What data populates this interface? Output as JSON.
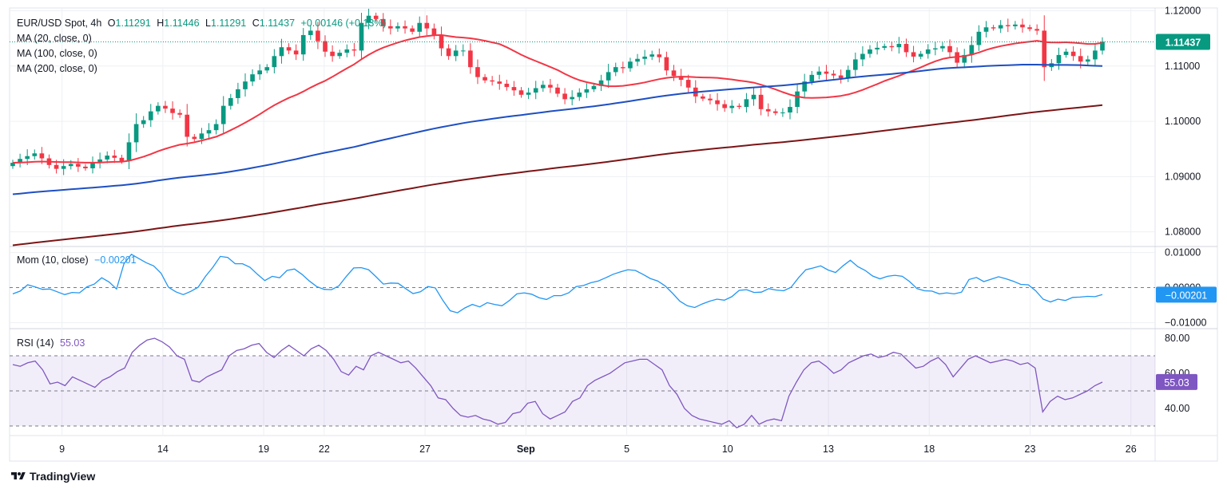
{
  "header": {
    "symbol": "EUR/USD Spot, 4h",
    "open_label": "O",
    "open": "1.11291",
    "high_label": "H",
    "high": "1.11446",
    "low_label": "L",
    "low": "1.11291",
    "close_label": "C",
    "close": "1.11437",
    "change": "+0.00146 (+0.13%)"
  },
  "ma_legend": [
    "MA (20, close, 0)",
    "MA (100, close, 0)",
    "MA (200, close, 0)"
  ],
  "mom_legend": {
    "label": "Mom (10, close)",
    "value": "−0.00201"
  },
  "rsi_legend": {
    "label": "RSI (14)",
    "value": "55.03"
  },
  "brand": "TradingView",
  "colors": {
    "up": "#089981",
    "down": "#f23645",
    "ma20": "#f23645",
    "ma100": "#1e4fc2",
    "ma200": "#7b1516",
    "mom": "#2196f3",
    "rsi": "#7e57c2",
    "grid": "#eef0f3"
  },
  "chart_data": [
    {
      "type": "candlestick",
      "title": "EUR/USD Spot, 4h",
      "ylim": [
        1.0775,
        1.1205
      ],
      "y_ticks": [
        "1.12000",
        "1.11000",
        "1.10000",
        "1.09000",
        "1.08000"
      ],
      "x_ticks": [
        "9",
        "14",
        "19",
        "22",
        "27",
        "Sep",
        "5",
        "10",
        "13",
        "18",
        "23",
        "26"
      ],
      "x_tick_positions": [
        9,
        14,
        19,
        22,
        27,
        32,
        37,
        42,
        47,
        52,
        57,
        62
      ],
      "xlim": [
        6.4,
        63.2
      ],
      "last_price": "1.11437",
      "closes": [
        1.0925,
        1.0932,
        1.0937,
        1.0942,
        1.0933,
        1.0921,
        1.0914,
        1.0919,
        1.0923,
        1.0918,
        1.0915,
        1.0926,
        1.0931,
        1.0938,
        1.0934,
        1.0928,
        1.0962,
        1.0995,
        1.1002,
        1.1018,
        1.1028,
        1.1023,
        1.1015,
        1.1012,
        1.0972,
        1.0968,
        1.0978,
        1.0984,
        1.0995,
        1.1028,
        1.1042,
        1.1058,
        1.1072,
        1.1085,
        1.1092,
        1.1098,
        1.1118,
        1.1134,
        1.1128,
        1.1121,
        1.1156,
        1.1164,
        1.1145,
        1.1126,
        1.1118,
        1.1124,
        1.113,
        1.1128,
        1.1178,
        1.1191,
        1.1185,
        1.1172,
        1.1168,
        1.1172,
        1.1168,
        1.1162,
        1.1178,
        1.1168,
        1.1156,
        1.1132,
        1.1118,
        1.1128,
        1.1128,
        1.1098,
        1.108,
        1.1074,
        1.1072,
        1.1068,
        1.1062,
        1.1056,
        1.1048,
        1.1052,
        1.106,
        1.1066,
        1.1061,
        1.105,
        1.104,
        1.1044,
        1.1052,
        1.1058,
        1.1064,
        1.1074,
        1.1089,
        1.1098,
        1.1096,
        1.1108,
        1.1113,
        1.1117,
        1.1121,
        1.1116,
        1.1092,
        1.1082,
        1.1075,
        1.1061,
        1.1045,
        1.1041,
        1.1038,
        1.1031,
        1.1024,
        1.1028,
        1.1026,
        1.104,
        1.1048,
        1.1022,
        1.1018,
        1.1015,
        1.1016,
        1.1026,
        1.1054,
        1.1072,
        1.1084,
        1.109,
        1.1086,
        1.1083,
        1.1078,
        1.1093,
        1.1112,
        1.1122,
        1.113,
        1.1133,
        1.1136,
        1.1134,
        1.114,
        1.1125,
        1.1117,
        1.1122,
        1.113,
        1.1132,
        1.1136,
        1.1125,
        1.1106,
        1.112,
        1.1138,
        1.1162,
        1.117,
        1.1168,
        1.1174,
        1.1172,
        1.1175,
        1.117,
        1.1167,
        1.1164,
        1.1098,
        1.1105,
        1.112,
        1.1126,
        1.1118,
        1.1108,
        1.1112,
        1.1128,
        1.1144
      ],
      "series": [
        {
          "name": "MA (20, close, 0)",
          "ma": 20
        },
        {
          "name": "MA (100, close, 0)",
          "ma": 100
        },
        {
          "name": "MA (200, close, 0)",
          "ma": 200
        }
      ]
    },
    {
      "type": "line",
      "title": "Mom (10, close)",
      "ylim": [
        -0.0115,
        0.0115
      ],
      "y_ticks": [
        "0.01000",
        "0.00000",
        "−0.01000"
      ],
      "last_value": "−0.00201",
      "values": [
        -0.0018,
        -0.001,
        0.0008,
        0.0002,
        -0.0005,
        -0.0004,
        -0.0012,
        -0.002,
        -0.0014,
        -0.0015,
        0.0002,
        0.001,
        0.0028,
        0.0016,
        -0.0004,
        0.0068,
        0.0095,
        0.0083,
        0.0071,
        0.0062,
        0.0041,
        0.0001,
        -0.0012,
        -0.002,
        -0.0011,
        0.0001,
        0.0032,
        0.0058,
        0.0089,
        0.0086,
        0.0068,
        0.0068,
        0.0058,
        0.0038,
        0.002,
        0.0032,
        0.0028,
        0.0049,
        0.0053,
        0.0038,
        0.0019,
        0.0003,
        -0.0005,
        -0.0006,
        0.0005,
        0.0032,
        0.0056,
        0.0057,
        0.0051,
        0.0031,
        0.001,
        0.0013,
        0.0012,
        -0.0003,
        -0.0017,
        -0.0012,
        0.0003,
        -0.0001,
        -0.0036,
        -0.0066,
        -0.0072,
        -0.0058,
        -0.0048,
        -0.0055,
        -0.0043,
        -0.0048,
        -0.0052,
        -0.0037,
        -0.0018,
        -0.0015,
        -0.0019,
        -0.0029,
        -0.0034,
        -0.0023,
        -0.0023,
        -0.0015,
        0.0003,
        0.0006,
        0.0014,
        0.0019,
        0.0028,
        0.0038,
        0.0045,
        0.0051,
        0.0049,
        0.0038,
        0.0026,
        0.0019,
        0.0005,
        -0.0016,
        -0.0039,
        -0.0052,
        -0.0057,
        -0.0047,
        -0.0039,
        -0.0033,
        -0.0036,
        -0.0026,
        -0.0008,
        -0.0006,
        -0.0014,
        -0.0013,
        -0.0003,
        -0.0007,
        -0.0009,
        0.0001,
        0.0028,
        0.0051,
        0.0056,
        0.0062,
        0.005,
        0.0043,
        0.0062,
        0.0078,
        0.006,
        0.0049,
        0.0033,
        0.0025,
        0.0032,
        0.0035,
        0.0032,
        0.0017,
        -0.0003,
        -0.0009,
        -0.001,
        -0.0018,
        -0.0015,
        -0.0018,
        -0.0013,
        0.0023,
        0.0029,
        0.0017,
        0.0024,
        0.0031,
        0.0025,
        0.0018,
        0.0009,
        0.0008,
        -0.0009,
        -0.0033,
        -0.0041,
        -0.0033,
        -0.0037,
        -0.0028,
        -0.0027,
        -0.0025,
        -0.0026,
        -0.002
      ]
    },
    {
      "type": "line",
      "title": "RSI (14)",
      "ylim": [
        25,
        85
      ],
      "y_ticks": [
        "80.00",
        "60.00",
        "40.00"
      ],
      "bands": [
        30,
        50,
        70
      ],
      "last_value": "55.03",
      "values": [
        65,
        64,
        66,
        67,
        62,
        54,
        55,
        53,
        58,
        56,
        54,
        52,
        56,
        58,
        61,
        63,
        72,
        76,
        79,
        80,
        78,
        75,
        70,
        68,
        56,
        55,
        58,
        60,
        62,
        70,
        73,
        74,
        76,
        77,
        72,
        69,
        73,
        76,
        73,
        70,
        74,
        76,
        73,
        68,
        61,
        59,
        64,
        62,
        70,
        72,
        70,
        68,
        66,
        67,
        63,
        58,
        53,
        46,
        45,
        40,
        36,
        35,
        36,
        34,
        33,
        31,
        32,
        37,
        38,
        43,
        44,
        37,
        34,
        36,
        38,
        44,
        46,
        53,
        56,
        58,
        60,
        63,
        66,
        67,
        68,
        68,
        65,
        62,
        53,
        48,
        40,
        36,
        34,
        33,
        32,
        31,
        33,
        29,
        31,
        36,
        31,
        33,
        34,
        33,
        47,
        55,
        62,
        66,
        67,
        64,
        60,
        62,
        66,
        68,
        70,
        71,
        69,
        70,
        72,
        71,
        67,
        63,
        64,
        67,
        69,
        65,
        58,
        63,
        68,
        70,
        68,
        66,
        67,
        68,
        67,
        65,
        66,
        63,
        38,
        44,
        47,
        45,
        46,
        48,
        50,
        53,
        55
      ]
    }
  ]
}
